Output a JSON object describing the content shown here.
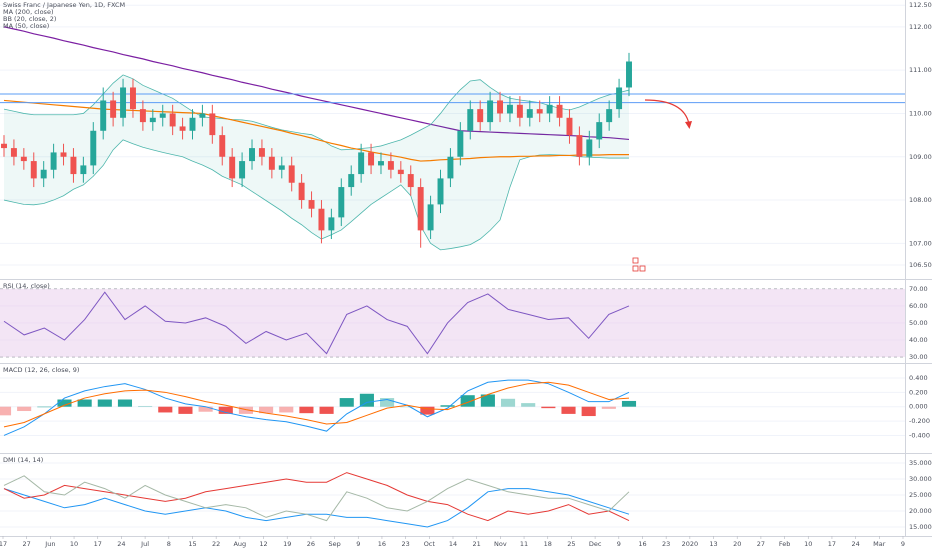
{
  "chart_data": [
    {
      "type": "candlestick",
      "title": "Swiss Franc / Japanese Yen, 1D, FXCM",
      "open": [
        109.3,
        109.2,
        109.0,
        108.9,
        108.5,
        108.7,
        109.1,
        109.0,
        108.6,
        108.8,
        109.6,
        110.3,
        109.9,
        110.6,
        110.1,
        109.8,
        109.9,
        110.0,
        109.7,
        109.6,
        109.9,
        110.0,
        109.5,
        109.0,
        108.5,
        108.9,
        109.2,
        109.0,
        108.7,
        108.8,
        108.4,
        108.0,
        107.8,
        107.3,
        107.6,
        108.3,
        108.6,
        109.1,
        108.8,
        108.9,
        108.7,
        108.6,
        108.3,
        107.3,
        107.9,
        108.5,
        109.0,
        109.6,
        110.1,
        109.8,
        110.3,
        110.0,
        110.2,
        109.9,
        110.1,
        110.0,
        110.2,
        109.9,
        109.5,
        109.0,
        109.4,
        109.8,
        110.1,
        110.6
      ],
      "high": [
        109.5,
        109.4,
        109.2,
        109.1,
        108.9,
        109.3,
        109.3,
        109.2,
        109.0,
        109.8,
        110.6,
        110.5,
        110.8,
        110.8,
        110.3,
        110.1,
        110.2,
        110.2,
        109.9,
        110.1,
        110.2,
        110.2,
        109.7,
        109.2,
        109.1,
        109.4,
        109.4,
        109.2,
        109.0,
        109.0,
        108.6,
        108.2,
        108.0,
        107.8,
        108.5,
        108.8,
        109.3,
        109.3,
        109.1,
        109.1,
        108.9,
        108.8,
        108.5,
        108.1,
        108.7,
        109.2,
        109.8,
        110.3,
        110.3,
        110.5,
        110.5,
        110.4,
        110.4,
        110.3,
        110.3,
        110.4,
        110.4,
        110.1,
        109.7,
        109.6,
        110.0,
        110.3,
        110.8,
        111.4
      ],
      "low": [
        109.0,
        108.8,
        108.7,
        108.3,
        108.3,
        108.5,
        108.8,
        108.4,
        108.4,
        108.6,
        109.4,
        109.7,
        109.7,
        109.9,
        109.6,
        109.6,
        109.7,
        109.5,
        109.4,
        109.4,
        109.7,
        109.3,
        108.8,
        108.3,
        108.3,
        108.7,
        108.8,
        108.5,
        108.5,
        108.2,
        107.8,
        107.6,
        107.0,
        107.1,
        107.4,
        108.1,
        108.4,
        108.6,
        108.6,
        108.5,
        108.4,
        108.1,
        106.9,
        107.1,
        107.7,
        108.3,
        108.8,
        109.4,
        109.6,
        109.6,
        109.8,
        109.8,
        109.7,
        109.7,
        109.8,
        109.8,
        109.7,
        109.3,
        108.8,
        108.8,
        109.2,
        109.6,
        109.9,
        110.4
      ],
      "close": [
        109.2,
        109.0,
        108.9,
        108.5,
        108.7,
        109.1,
        109.0,
        108.6,
        108.8,
        109.6,
        110.3,
        109.9,
        110.6,
        110.1,
        109.8,
        109.9,
        110.0,
        109.7,
        109.6,
        109.9,
        110.0,
        109.5,
        109.0,
        108.5,
        108.9,
        109.2,
        109.0,
        108.7,
        108.8,
        108.4,
        108.0,
        107.8,
        107.3,
        107.6,
        108.3,
        108.6,
        109.1,
        108.8,
        108.9,
        108.7,
        108.6,
        108.3,
        107.3,
        107.9,
        108.5,
        109.0,
        109.6,
        110.1,
        109.8,
        110.3,
        110.0,
        110.2,
        109.9,
        110.1,
        110.0,
        110.2,
        109.9,
        109.5,
        109.0,
        109.4,
        109.8,
        110.1,
        110.6,
        111.2
      ],
      "up_color": "#26a69a",
      "down_color": "#ef5350",
      "overlays": [
        {
          "name": "MA (200, close)",
          "color": "#7b1fa2",
          "values": [
            112.0,
            111.95,
            111.9,
            111.84,
            111.79,
            111.74,
            111.68,
            111.63,
            111.58,
            111.52,
            111.47,
            111.42,
            111.36,
            111.31,
            111.26,
            111.2,
            111.15,
            111.1,
            111.04,
            110.99,
            110.94,
            110.88,
            110.83,
            110.78,
            110.72,
            110.67,
            110.62,
            110.56,
            110.51,
            110.46,
            110.4,
            110.35,
            110.3,
            110.25,
            110.2,
            110.15,
            110.1,
            110.05,
            110.0,
            109.95,
            109.9,
            109.85,
            109.8,
            109.75,
            109.7,
            109.65,
            109.6,
            109.59,
            109.58,
            109.57,
            109.56,
            109.55,
            109.54,
            109.53,
            109.52,
            109.51,
            109.5,
            109.49,
            109.48,
            109.46,
            109.45,
            109.44,
            109.42,
            109.4
          ]
        },
        {
          "name": "BB (20, close, 2)",
          "color": "#4db6ac",
          "fill": "#26a69a",
          "upper": [
            110.1,
            110.05,
            110.0,
            109.97,
            109.97,
            109.97,
            109.97,
            109.97,
            110.0,
            110.2,
            110.45,
            110.7,
            110.89,
            110.8,
            110.65,
            110.55,
            110.45,
            110.35,
            110.2,
            110.05,
            109.92,
            109.9,
            109.88,
            109.86,
            109.85,
            109.82,
            109.75,
            109.68,
            109.62,
            109.58,
            109.54,
            109.51,
            109.4,
            109.25,
            109.16,
            109.17,
            109.19,
            109.21,
            109.25,
            109.32,
            109.39,
            109.5,
            109.62,
            109.74,
            110.0,
            110.3,
            110.55,
            110.75,
            110.78,
            110.6,
            110.45,
            110.35,
            110.31,
            110.28,
            110.25,
            110.18,
            110.12,
            110.08,
            110.15,
            110.25,
            110.35,
            110.43,
            110.48,
            110.54
          ],
          "lower": [
            108.0,
            107.95,
            107.9,
            107.89,
            107.92,
            108.0,
            108.1,
            108.25,
            108.35,
            108.55,
            108.8,
            109.16,
            109.39,
            109.3,
            109.22,
            109.16,
            109.1,
            109.05,
            109.0,
            108.9,
            108.81,
            108.7,
            108.55,
            108.45,
            108.35,
            108.2,
            108.05,
            107.9,
            107.75,
            107.58,
            107.43,
            107.25,
            107.1,
            107.2,
            107.31,
            107.5,
            107.7,
            107.9,
            108.05,
            108.2,
            108.35,
            108.1,
            107.4,
            107.0,
            106.85,
            106.88,
            106.92,
            106.97,
            107.1,
            107.3,
            107.54,
            108.3,
            108.93,
            109.0,
            109.04,
            109.05,
            109.04,
            109.03,
            109.0,
            108.99,
            108.98,
            108.97,
            108.97,
            108.97
          ]
        },
        {
          "name": "MA (50, close)",
          "color": "#f57c00",
          "values": [
            110.3,
            110.28,
            110.26,
            110.24,
            110.22,
            110.2,
            110.18,
            110.16,
            110.14,
            110.12,
            110.1,
            110.09,
            110.08,
            110.07,
            110.06,
            110.05,
            110.04,
            110.03,
            110.02,
            110.01,
            110.0,
            109.95,
            109.9,
            109.85,
            109.8,
            109.75,
            109.7,
            109.65,
            109.6,
            109.54,
            109.49,
            109.43,
            109.37,
            109.31,
            109.26,
            109.2,
            109.16,
            109.11,
            109.07,
            109.03,
            108.99,
            108.94,
            108.9,
            108.91,
            108.93,
            108.94,
            108.95,
            108.96,
            108.98,
            108.99,
            109.0,
            109.0,
            109.01,
            109.01,
            109.02,
            109.02,
            109.03,
            109.03,
            109.04,
            109.04,
            109.04,
            109.05,
            109.05,
            109.05
          ]
        }
      ],
      "hlines": [
        {
          "value": 110.45,
          "color": "#5b9cf6"
        },
        {
          "value": 110.25,
          "color": "#5b9cf6"
        }
      ],
      "ylim": [
        106.2,
        112.62
      ],
      "yticks": [
        {
          "value": 106.5,
          "label": "106.500"
        },
        {
          "value": 107,
          "label": "107.000"
        },
        {
          "value": 108,
          "label": "108.000"
        },
        {
          "value": 109,
          "label": "109.000"
        },
        {
          "value": 110,
          "label": "110.000"
        },
        {
          "value": 111,
          "label": "111.000"
        },
        {
          "value": 112,
          "label": "112.000"
        },
        {
          "value": 112.5,
          "label": "112.500"
        }
      ],
      "grid": true
    },
    {
      "type": "rsi",
      "title": "RSI (14, close)",
      "color": "#7e57c2",
      "band_color": "#f3e5f5",
      "values": [
        51,
        43,
        47,
        40,
        52,
        68,
        52,
        60,
        51,
        50,
        53,
        48,
        38,
        45,
        40,
        44,
        32,
        55,
        60,
        52,
        48,
        32,
        50,
        62,
        67,
        58,
        55,
        52,
        53,
        41,
        55,
        60
      ],
      "ylim": [
        27.1,
        74.6
      ],
      "yticks": [
        {
          "value": 30,
          "label": "30.00"
        },
        {
          "value": 40,
          "label": "40.00"
        },
        {
          "value": 50,
          "label": "50.00"
        },
        {
          "value": 60,
          "label": "60.00"
        },
        {
          "value": 70,
          "label": "70.00"
        }
      ]
    },
    {
      "type": "macd",
      "title": "MACD (12, 26, close, 9)",
      "histogram": {
        "color": "#26a69a",
        "negative_color": "#ef5350",
        "values": [
          -0.12,
          -0.06,
          0.0,
          0.1,
          0.1,
          0.1,
          0.1,
          0.01,
          -0.08,
          -0.1,
          -0.07,
          -0.1,
          -0.1,
          -0.09,
          -0.08,
          -0.09,
          -0.1,
          0.12,
          0.18,
          0.12,
          0.0,
          -0.11,
          0.02,
          0.16,
          0.17,
          0.11,
          0.05,
          -0.02,
          -0.1,
          -0.13,
          -0.03,
          0.08
        ]
      },
      "series": [
        {
          "color": "#2196f3",
          "values": [
            -0.4,
            -0.28,
            -0.1,
            0.12,
            0.22,
            0.28,
            0.32,
            0.24,
            0.12,
            0.04,
            0.0,
            -0.08,
            -0.14,
            -0.18,
            -0.21,
            -0.27,
            -0.34,
            -0.1,
            0.06,
            0.1,
            0.02,
            -0.14,
            -0.02,
            0.22,
            0.34,
            0.37,
            0.37,
            0.32,
            0.2,
            0.07,
            0.07,
            0.2
          ]
        },
        {
          "color": "#ff6d00",
          "values": [
            -0.28,
            -0.22,
            -0.1,
            0.02,
            0.12,
            0.18,
            0.22,
            0.23,
            0.2,
            0.14,
            0.07,
            0.02,
            -0.04,
            -0.09,
            -0.13,
            -0.18,
            -0.24,
            -0.22,
            -0.12,
            -0.02,
            0.02,
            -0.03,
            -0.04,
            0.06,
            0.17,
            0.26,
            0.32,
            0.34,
            0.3,
            0.2,
            0.1,
            0.12
          ]
        }
      ],
      "ylim": [
        -0.63,
        0.58
      ],
      "yticks": [
        {
          "value": -0.4,
          "label": "-0.400"
        },
        {
          "value": -0.2,
          "label": "-0.200"
        },
        {
          "value": 0,
          "label": "0.000"
        },
        {
          "value": 0.2,
          "label": "0.200"
        },
        {
          "value": 0.4,
          "label": "0.400"
        }
      ]
    },
    {
      "type": "line",
      "title": "DMI (14, 14)",
      "series": [
        {
          "color": "#2196f3",
          "values": [
            27,
            25,
            23,
            21,
            22,
            24,
            22,
            20,
            19,
            20,
            21,
            20,
            18,
            17,
            18,
            19,
            19,
            18,
            18,
            17,
            16,
            15,
            17,
            21,
            26,
            27,
            27,
            26,
            25,
            23,
            21,
            19
          ]
        },
        {
          "color": "#e53935",
          "values": [
            27,
            24,
            25,
            28,
            27,
            26,
            25,
            24,
            23,
            24,
            26,
            27,
            28,
            29,
            30,
            29,
            29,
            32,
            30,
            28,
            25,
            23,
            22,
            19,
            17,
            20,
            19,
            20,
            22,
            19,
            20,
            17
          ]
        },
        {
          "color": "#a5b8a6",
          "values": [
            28,
            31,
            26,
            25,
            29,
            27,
            24,
            28,
            25,
            23,
            21,
            22,
            21,
            18,
            20,
            19,
            17,
            26,
            24,
            21,
            20,
            23,
            27,
            30,
            28,
            26,
            25,
            24,
            24,
            22,
            20,
            26
          ]
        }
      ],
      "ylim": [
        12.5,
        37.5
      ],
      "yticks": [
        {
          "value": 15,
          "label": "15.0000"
        },
        {
          "value": 20,
          "label": "20.0000"
        },
        {
          "value": 25,
          "label": "25.0000"
        },
        {
          "value": 30,
          "label": "30.0000"
        },
        {
          "value": 35,
          "label": "35.0000"
        }
      ]
    }
  ],
  "time_axis": {
    "labels": [
      "17",
      "27",
      "Jun",
      "10",
      "17",
      "24",
      "Jul",
      "8",
      "15",
      "22",
      "Aug",
      "12",
      "19",
      "26",
      "Sep",
      "9",
      "16",
      "23",
      "Oct",
      "14",
      "21",
      "Nov",
      "11",
      "18",
      "25",
      "Dec",
      "9",
      "16",
      "23",
      "2020",
      "13",
      "20",
      "27",
      "Feb",
      "10",
      "17",
      "24",
      "Mar",
      "9"
    ]
  }
}
